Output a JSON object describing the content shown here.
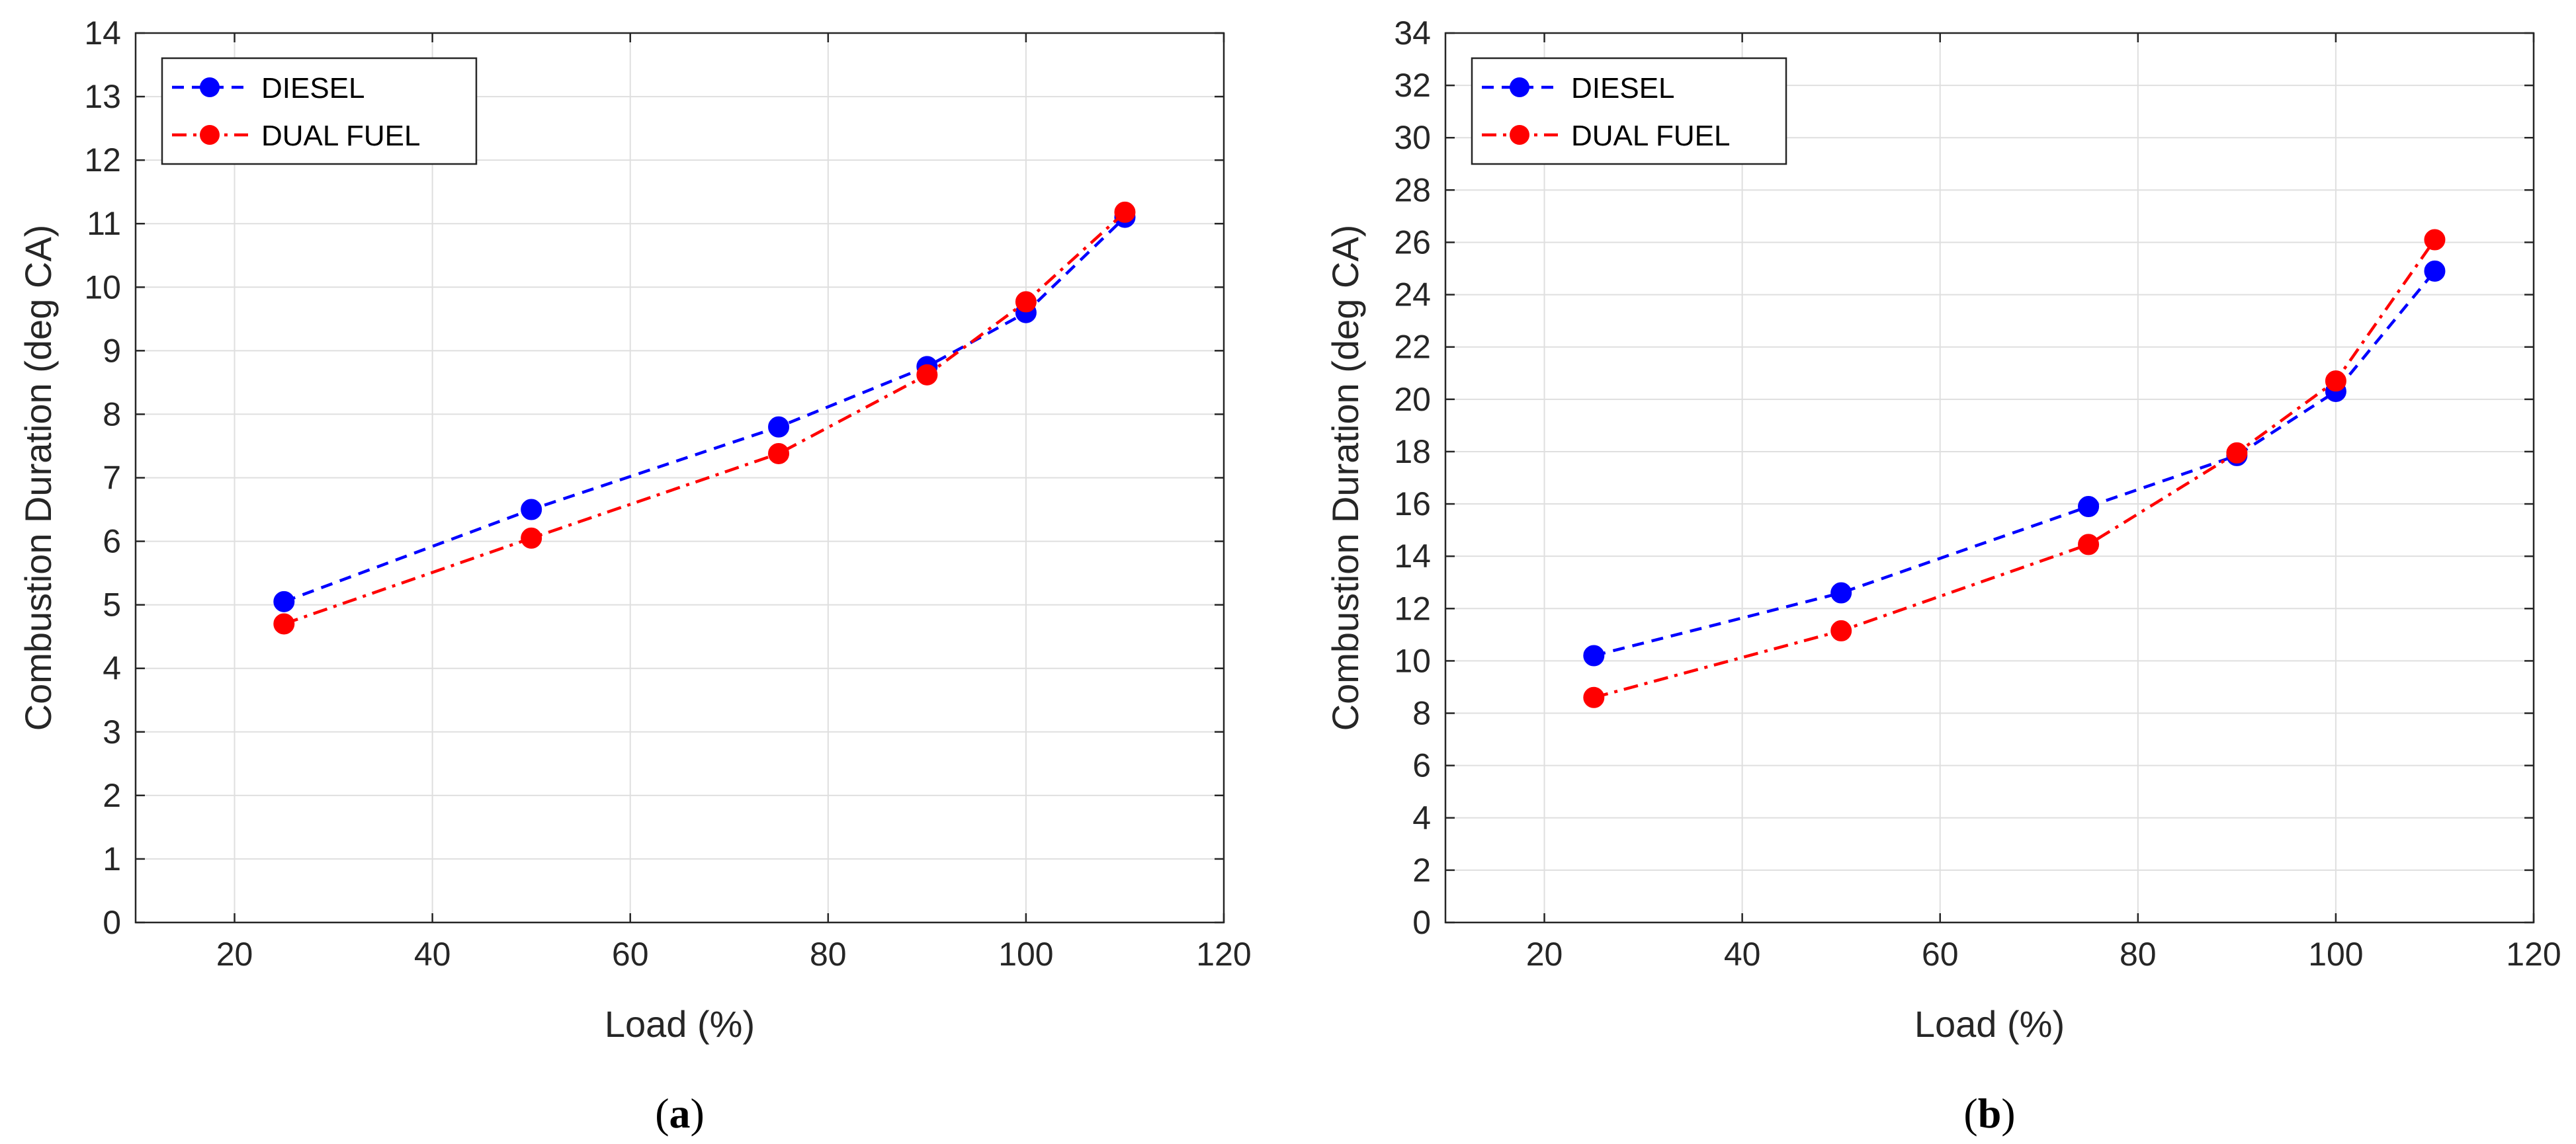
{
  "chart_data": [
    {
      "type": "line",
      "panel_label": "(a)",
      "panel_letter": "a",
      "xlabel": "Load (%)",
      "ylabel": "Combustion Duration (deg CA)",
      "xlim": [
        10,
        120
      ],
      "ylim": [
        0,
        14
      ],
      "xticks": [
        20,
        40,
        60,
        80,
        100,
        120
      ],
      "yticks": [
        0,
        1,
        2,
        3,
        4,
        5,
        6,
        7,
        8,
        9,
        10,
        11,
        12,
        13,
        14
      ],
      "grid": true,
      "legend_position": "top-left",
      "x": [
        25,
        50,
        75,
        90,
        100,
        110
      ],
      "series": [
        {
          "name": "DIESEL",
          "color": "#0000ff",
          "style": "dashed",
          "values": [
            5.05,
            6.5,
            7.8,
            8.75,
            9.6,
            11.1
          ]
        },
        {
          "name": "DUAL FUEL",
          "color": "#ff0000",
          "style": "dash-dot",
          "values": [
            4.7,
            6.05,
            7.38,
            8.62,
            9.77,
            11.18
          ]
        }
      ]
    },
    {
      "type": "line",
      "panel_label": "(b)",
      "panel_letter": "b",
      "xlabel": "Load (%)",
      "ylabel": "Combustion Duration (deg CA)",
      "xlim": [
        10,
        120
      ],
      "ylim": [
        0,
        34
      ],
      "xticks": [
        20,
        40,
        60,
        80,
        100,
        120
      ],
      "yticks": [
        0,
        2,
        4,
        6,
        8,
        10,
        12,
        14,
        16,
        18,
        20,
        22,
        24,
        26,
        28,
        30,
        32,
        34
      ],
      "grid": true,
      "legend_position": "top-left",
      "x": [
        25,
        50,
        75,
        90,
        100,
        110
      ],
      "series": [
        {
          "name": "DIESEL",
          "color": "#0000ff",
          "style": "dashed",
          "values": [
            10.2,
            12.6,
            15.9,
            17.85,
            20.3,
            24.9
          ]
        },
        {
          "name": "DUAL FUEL",
          "color": "#ff0000",
          "style": "dash-dot",
          "values": [
            8.6,
            11.15,
            14.45,
            17.95,
            20.7,
            26.1
          ]
        }
      ]
    }
  ]
}
